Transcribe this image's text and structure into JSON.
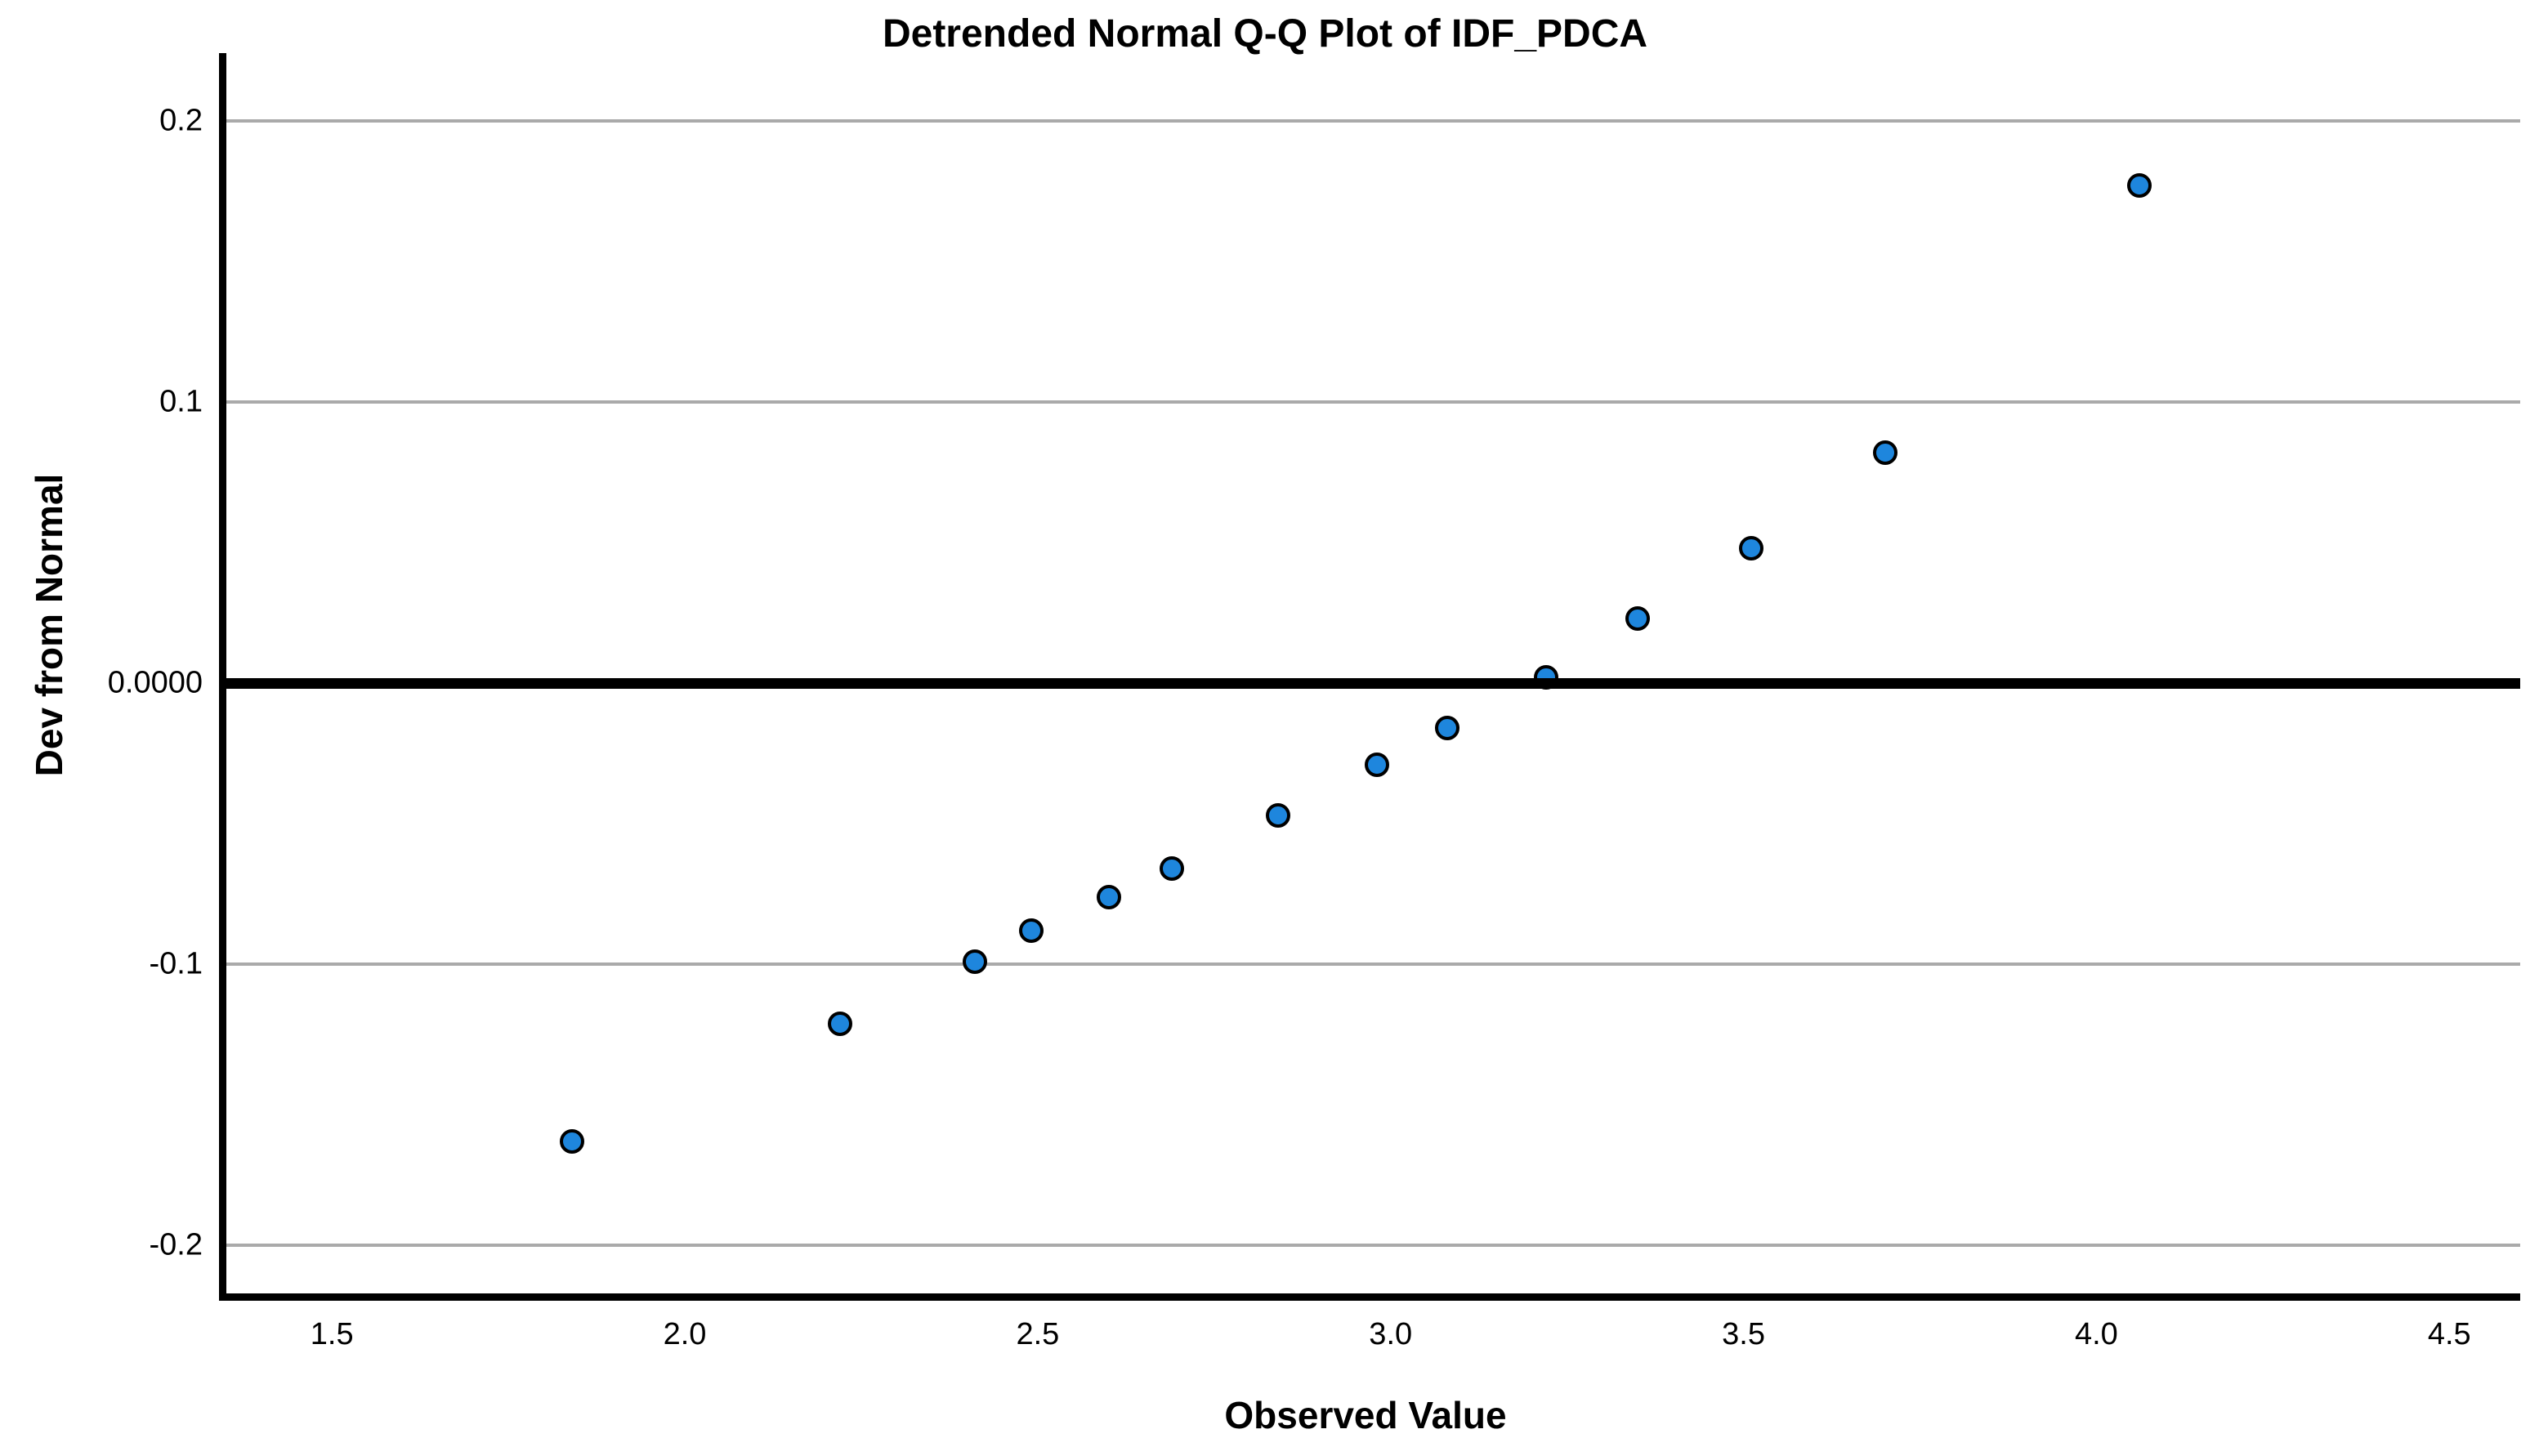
{
  "chart_data": {
    "type": "scatter",
    "title": "Detrended Normal Q-Q Plot of IDF_PDCA",
    "xlabel": "Observed Value",
    "ylabel": "Dev from Normal",
    "x_tick_labels": [
      "1.5",
      "2.0",
      "2.5",
      "3.0",
      "3.5",
      "4.0",
      "4.5"
    ],
    "x_tick_values": [
      1.5,
      2.0,
      2.5,
      3.0,
      3.5,
      4.0,
      4.5
    ],
    "y_tick_labels": [
      "0.2",
      "0.1",
      "0.0000",
      "-0.1",
      "-0.2"
    ],
    "y_tick_values": [
      0.2,
      0.1,
      0.0,
      -0.1,
      -0.2
    ],
    "xlim": [
      1.34,
      4.59
    ],
    "ylim": [
      -0.217,
      0.224
    ],
    "grid": "horizontal",
    "legend": "none",
    "reference_line_y": 0,
    "series": [
      {
        "name": "IDF_PDCA",
        "x": [
          1.83,
          2.21,
          2.4,
          2.48,
          2.59,
          2.68,
          2.83,
          2.97,
          3.07,
          3.21,
          3.34,
          3.5,
          3.69,
          4.05
        ],
        "y": [
          -0.163,
          -0.121,
          -0.099,
          -0.088,
          -0.076,
          -0.066,
          -0.047,
          -0.029,
          -0.016,
          0.002,
          0.023,
          0.048,
          0.082,
          0.177
        ]
      }
    ],
    "colors": {
      "marker_fill": "#1e86dd",
      "marker_stroke": "#000000",
      "gridline": "#aaaaaa",
      "reference_line": "#000000",
      "axis": "#000000",
      "text": "#000000",
      "background": "#ffffff"
    }
  }
}
